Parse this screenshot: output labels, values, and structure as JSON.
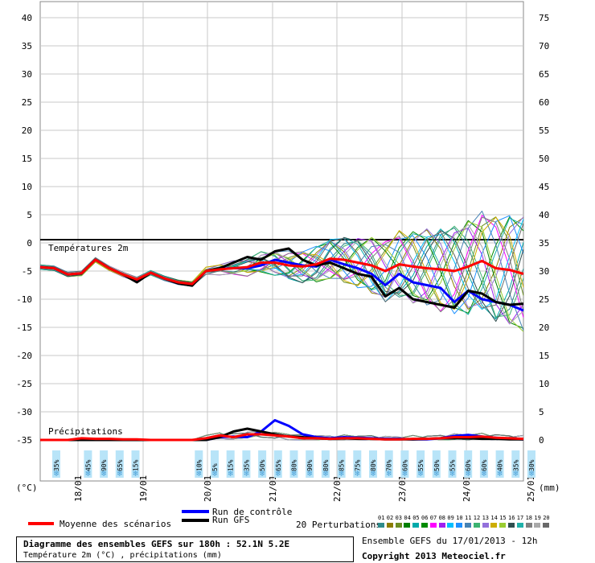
{
  "chart_data": {
    "type": "line",
    "x": [
      "17/01 12h",
      "18/01 00h",
      "18/01 12h",
      "19/01 00h",
      "19/01 12h",
      "20/01 00h",
      "20/01 12h",
      "21/01 00h",
      "21/01 12h",
      "22/01 00h",
      "22/01 12h",
      "23/01 00h",
      "23/01 12h",
      "24/01 00h",
      "24/01 12h",
      "25/01 00h"
    ],
    "date_ticks": [
      "18/01",
      "19/01",
      "20/01",
      "21/01",
      "22/01",
      "23/01",
      "24/01",
      "25/01"
    ],
    "temp_axis": {
      "ylim": [
        -35,
        40
      ],
      "ticks": [
        40,
        35,
        30,
        25,
        20,
        15,
        10,
        5,
        0,
        -5,
        -10,
        -15,
        -20,
        -25,
        -30,
        -35
      ],
      "unit": "(°C)"
    },
    "precip_axis": {
      "ylim": [
        0,
        75
      ],
      "ticks": [
        75,
        70,
        65,
        60,
        55,
        50,
        45,
        40,
        35,
        30,
        25,
        20,
        15,
        10,
        5,
        0
      ],
      "unit": "(mm)"
    },
    "temp_series": {
      "mean": [
        -4.3,
        -4.5,
        -5.6,
        -5.4,
        -3,
        -4.5,
        -5.6,
        -6.5,
        -5.3,
        -6.3,
        -7,
        -7.3,
        -5,
        -4.7,
        -4.5,
        -4.3,
        -3.5,
        -3.5,
        -4,
        -4.2,
        -3.8,
        -2.8,
        -3,
        -3.5,
        -4,
        -5,
        -3.8,
        -4.2,
        -4.5,
        -4.7,
        -5,
        -4.2,
        -3.2,
        -4.5,
        -4.8,
        -5.5
      ],
      "control": [
        -4.3,
        -4.5,
        -5.6,
        -5.4,
        -3,
        -4.5,
        -5.6,
        -6.8,
        -5.3,
        -6.3,
        -7.2,
        -7.5,
        -5,
        -4.6,
        -4.5,
        -4.5,
        -4,
        -3,
        -3.5,
        -4,
        -4.2,
        -3,
        -3.8,
        -4.5,
        -5.5,
        -7.5,
        -5.5,
        -7,
        -7.5,
        -8,
        -10.5,
        -8.5,
        -10,
        -10.5,
        -11,
        -12
      ],
      "gfs": [
        -4.3,
        -4.5,
        -5.6,
        -5.4,
        -3,
        -4.5,
        -5.6,
        -7,
        -5.3,
        -6.3,
        -7.2,
        -7.6,
        -5,
        -4.5,
        -3.5,
        -2.5,
        -3,
        -1.5,
        -1,
        -3,
        -4,
        -3.5,
        -4.5,
        -5.5,
        -6,
        -9.5,
        -8,
        -10,
        -10.5,
        -11,
        -11.5,
        -8.5,
        -9,
        -10.5,
        -11,
        -10.8
      ]
    },
    "precip_series": {
      "mean": [
        0,
        0,
        0,
        0.3,
        0.2,
        0.2,
        0.1,
        0.1,
        0,
        0,
        0,
        0,
        0.3,
        0.8,
        0.5,
        1,
        1,
        0.8,
        0.6,
        0.3,
        0.3,
        0.2,
        0.3,
        0.3,
        0.2,
        0.1,
        0.1,
        0.2,
        0.2,
        0.3,
        0.5,
        0.5,
        0.6,
        0.4,
        0.3,
        0.2
      ],
      "control": [
        0,
        0,
        0,
        0,
        0,
        0,
        0,
        0,
        0,
        0,
        0,
        0,
        0,
        0.5,
        0.6,
        0.5,
        1.5,
        3.5,
        2.5,
        1,
        0.5,
        0.3,
        0.5,
        0.4,
        0.3,
        0.2,
        0.2,
        0.1,
        0.1,
        0.3,
        0.7,
        0.9,
        0.6,
        0.4,
        0.2,
        0.1
      ],
      "gfs": [
        0,
        0,
        0,
        0,
        0,
        0,
        0,
        0,
        0,
        0,
        0,
        0,
        0,
        0.5,
        1.5,
        2,
        1.5,
        1,
        0.6,
        0.5,
        0.3,
        0.2,
        0.3,
        0.2,
        0.2,
        0.1,
        0.1,
        0.1,
        0.2,
        0.3,
        0.3,
        0.3,
        0.2,
        0.2,
        0.1,
        0.1
      ]
    },
    "snow_probabilities": [
      "35%",
      "",
      "45%",
      "90%",
      "65%",
      "15%",
      "",
      "",
      "",
      "10%",
      "5%",
      "15%",
      "35%",
      "50%",
      "65%",
      "80%",
      "90%",
      "80%",
      "85%",
      "75%",
      "80%",
      "70%",
      "60%",
      "55%",
      "50%",
      "55%",
      "60%",
      "60%",
      "40%",
      "35%",
      "30%"
    ],
    "panel_labels": {
      "temp": "Températures 2m",
      "precip": "Précipitations"
    },
    "legend": {
      "mean": "Moyenne des scénarios",
      "control": "Run de contrôle",
      "gfs": "Run GFS",
      "perturbations": "20 Perturbations",
      "perturbation_numbers": [
        "01",
        "02",
        "03",
        "04",
        "05",
        "06",
        "07",
        "08",
        "09",
        "10",
        "11",
        "12",
        "13",
        "14",
        "15",
        "16",
        "17",
        "18",
        "19",
        "20"
      ]
    },
    "colors": {
      "mean": "#ff0000",
      "control": "#0000ff",
      "gfs": "#000000",
      "grid": "#c8c8c8",
      "snow": "#b8e4f8",
      "perturbations": [
        "#2e8b8b",
        "#8b7d00",
        "#6b8e23",
        "#008000",
        "#00aaaa",
        "#008b00",
        "#ff00ff",
        "#a020f0",
        "#00bfff",
        "#1e90ff",
        "#4682b4",
        "#3cb371",
        "#9370db",
        "#cdad00",
        "#9acd32",
        "#2f4f4f",
        "#20b2aa",
        "#808080",
        "#a9a9a9",
        "#696969"
      ]
    }
  },
  "title_box": {
    "line1": "Diagramme des ensembles GEFS sur 180h : 52.1N 5.2E",
    "line2": "Température 2m (°C) , précipitations (mm)"
  },
  "run_info": "Ensemble GEFS du 17/01/2013 - 12h",
  "copyright": "Copyright 2013 Meteociel.fr"
}
